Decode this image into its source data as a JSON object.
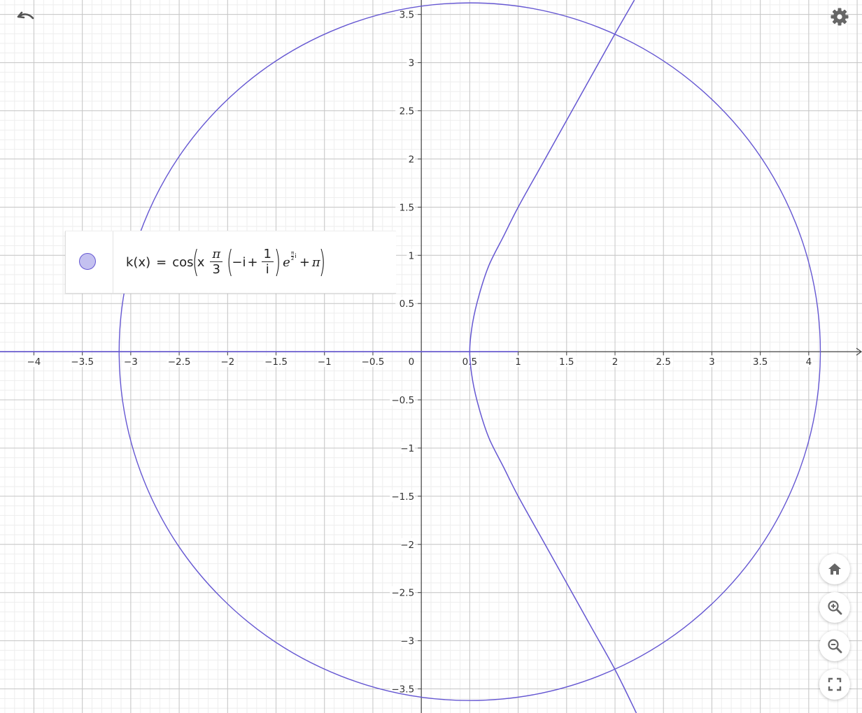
{
  "chart_data": {
    "type": "line",
    "xlim": [
      -4.35,
      4.55
    ],
    "ylim": [
      -3.75,
      3.65
    ],
    "grid": true,
    "minor_grid": true,
    "x_ticks": [
      {
        "v": -4,
        "t": "−4"
      },
      {
        "v": -3.5,
        "t": "−3.5"
      },
      {
        "v": -3,
        "t": "−3"
      },
      {
        "v": -2.5,
        "t": "−2.5"
      },
      {
        "v": -2,
        "t": "−2"
      },
      {
        "v": -1.5,
        "t": "−1.5"
      },
      {
        "v": -1,
        "t": "−1"
      },
      {
        "v": -0.5,
        "t": "−0.5"
      },
      {
        "v": 0.5,
        "t": "0.5"
      },
      {
        "v": 1,
        "t": "1"
      },
      {
        "v": 1.5,
        "t": "1.5"
      },
      {
        "v": 2,
        "t": "2"
      },
      {
        "v": 2.5,
        "t": "2.5"
      },
      {
        "v": 3,
        "t": "3"
      },
      {
        "v": 3.5,
        "t": "3.5"
      },
      {
        "v": 4,
        "t": "4"
      }
    ],
    "y_ticks": [
      {
        "v": 3.5,
        "t": "3.5"
      },
      {
        "v": 3,
        "t": "3"
      },
      {
        "v": 2.5,
        "t": "2.5"
      },
      {
        "v": 2,
        "t": "2"
      },
      {
        "v": 1.5,
        "t": "1.5"
      },
      {
        "v": 1,
        "t": "1"
      },
      {
        "v": 0.5,
        "t": "0.5"
      },
      {
        "v": -0.5,
        "t": "−0.5"
      },
      {
        "v": -1,
        "t": "−1"
      },
      {
        "v": -1.5,
        "t": "−1.5"
      },
      {
        "v": -2,
        "t": "−2"
      },
      {
        "v": -2.5,
        "t": "−2.5"
      },
      {
        "v": -3,
        "t": "−3"
      },
      {
        "v": -3.5,
        "t": "−3.5"
      }
    ],
    "origin_label": "0",
    "curve_color": "#6557d2",
    "series": [
      {
        "kind": "circle",
        "center": [
          0.5,
          0
        ],
        "radius": 3.62
      },
      {
        "kind": "curve",
        "points": [
          [
            2.2,
            3.65
          ],
          [
            2.0,
            3.3
          ],
          [
            1.75,
            2.85
          ],
          [
            1.5,
            2.4
          ],
          [
            1.25,
            1.95
          ],
          [
            1.0,
            1.5
          ],
          [
            0.85,
            1.2
          ],
          [
            0.7,
            0.9
          ],
          [
            0.6,
            0.6
          ],
          [
            0.53,
            0.3
          ],
          [
            0.5,
            0.0
          ],
          [
            0.53,
            -0.3
          ],
          [
            0.6,
            -0.6
          ],
          [
            0.7,
            -0.9
          ],
          [
            0.85,
            -1.2
          ],
          [
            1.0,
            -1.5
          ],
          [
            1.25,
            -1.95
          ],
          [
            1.5,
            -2.4
          ],
          [
            1.75,
            -2.85
          ],
          [
            2.0,
            -3.3
          ],
          [
            2.22,
            -3.75
          ]
        ]
      },
      {
        "kind": "segment",
        "points": [
          [
            -4.35,
            0.0
          ],
          [
            1.0,
            0.0
          ]
        ]
      }
    ]
  },
  "algebra": {
    "lhs": "k(x)",
    "equals": "=",
    "cos": "cos",
    "x": "x",
    "pi_num": "π",
    "den3": "3",
    "minus_i": "−i",
    "plus1": "+",
    "one": "1",
    "i_den": "i",
    "e": "e",
    "exp_pi": "π",
    "exp_2": "2",
    "exp_i": "i",
    "plus2": "+",
    "pi_end": "π",
    "marble_color": "#c4c1f0"
  },
  "icons": {
    "undo": "undo-icon",
    "settings": "gear-icon",
    "home": "home-icon",
    "zoom_in": "zoom-in-icon",
    "zoom_out": "zoom-out-icon",
    "fullscreen": "fullscreen-icon"
  }
}
